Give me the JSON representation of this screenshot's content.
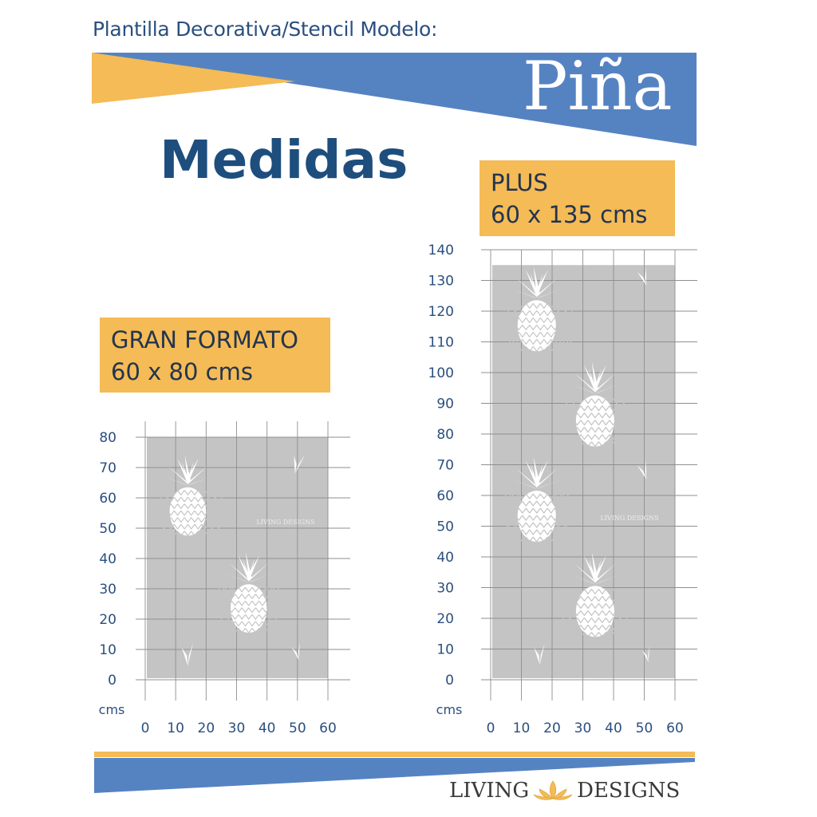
{
  "header": {
    "subtitle": "Plantilla Decorativa/Stencil Modelo:",
    "product_name": "Piña"
  },
  "main": {
    "heading": "Medidas"
  },
  "formats": [
    {
      "name": "GRAN FORMATO",
      "size": "60 x 80 cms",
      "width_cm": 60,
      "height_cm": 80,
      "x_ticks": [
        "0",
        "10",
        "20",
        "30",
        "40",
        "50",
        "60"
      ],
      "y_ticks": [
        "0",
        "10",
        "20",
        "30",
        "40",
        "50",
        "60",
        "70",
        "80"
      ],
      "unit": "cms",
      "watermark": "LIVING DESIGNS",
      "pineapples": 2,
      "leaves": 3
    },
    {
      "name": "PLUS",
      "size": "60 x 135 cms",
      "width_cm": 60,
      "height_cm": 135,
      "x_ticks": [
        "0",
        "10",
        "20",
        "30",
        "40",
        "50",
        "60"
      ],
      "y_ticks": [
        "0",
        "10",
        "20",
        "30",
        "40",
        "50",
        "60",
        "70",
        "80",
        "90",
        "100",
        "110",
        "120",
        "130",
        "140"
      ],
      "unit": "cms",
      "watermark": "LIVING DESIGNS",
      "pineapples": 4,
      "leaves": 4
    }
  ],
  "footer": {
    "brand_left": "LIVING",
    "brand_right": "DESIGNS",
    "logo_icon": "lotus-icon"
  },
  "colors": {
    "blue": "#5583c2",
    "gold": "#f4bb56",
    "stencil": "#c4c4c4",
    "grid": "#8f8f8f",
    "heading": "#1d4e7d"
  }
}
